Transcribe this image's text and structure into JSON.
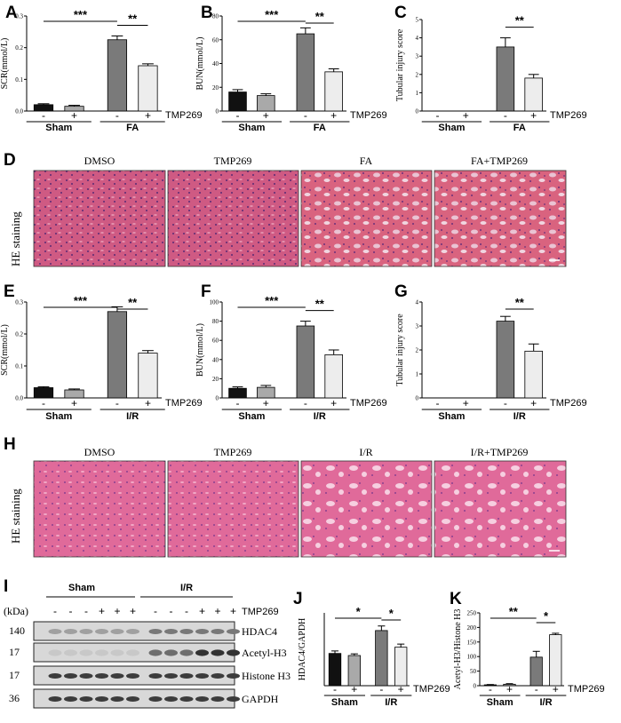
{
  "panel_labels": [
    "A",
    "B",
    "C",
    "D",
    "E",
    "F",
    "G",
    "H",
    "I",
    "J",
    "K"
  ],
  "hist_D": {
    "row_label": "HE staining",
    "captions": [
      "DMSO",
      "TMP269",
      "FA",
      "FA+TMP269"
    ]
  },
  "hist_H": {
    "row_label": "HE staining",
    "captions": [
      "DMSO",
      "TMP269",
      "I/R",
      "I/R+TMP269"
    ]
  },
  "colors": {
    "black": "#111111",
    "lightgray": "#a9a9a9",
    "darkgray": "#7a7a7a",
    "white": "#ededed",
    "he_pink": "#d9637f",
    "he_violet": "#b45894"
  },
  "blot": {
    "kda_label": "(kDa)",
    "group_labels": [
      "Sham",
      "I/R"
    ],
    "treatment_label": "TMP269",
    "signs": [
      "-",
      "-",
      "-",
      "+",
      "+",
      "+",
      "-",
      "-",
      "-",
      "+",
      "+",
      "+"
    ],
    "rows": [
      {
        "kda": "140",
        "protein": "HDAC4"
      },
      {
        "kda": "17",
        "protein": "Acetyl-H3"
      },
      {
        "kda": "17",
        "protein": "Histone H3"
      },
      {
        "kda": "36",
        "protein": "GAPDH"
      }
    ]
  },
  "chart_data": [
    {
      "panel": "A",
      "type": "bar",
      "ylabel": "SCR(mmol/L)",
      "yticks": [
        "0.0",
        "0.1",
        "0.2",
        "0.3"
      ],
      "ylim": [
        0,
        0.3
      ],
      "categories": [
        "-",
        "+",
        "-",
        "+"
      ],
      "groups": [
        "Sham",
        "FA"
      ],
      "treatment_label": "TMP269",
      "values": [
        0.02,
        0.015,
        0.225,
        0.143
      ],
      "errors": [
        0.003,
        0.003,
        0.012,
        0.006
      ],
      "significance": [
        {
          "from": 0,
          "to": 2,
          "label": "***"
        },
        {
          "from": 2,
          "to": 3,
          "label": "**"
        }
      ]
    },
    {
      "panel": "B",
      "type": "bar",
      "ylabel": "BUN(mmol/L)",
      "yticks": [
        "0",
        "20",
        "40",
        "60",
        "80"
      ],
      "ylim": [
        0,
        80
      ],
      "categories": [
        "-",
        "+",
        "-",
        "+"
      ],
      "groups": [
        "Sham",
        "FA"
      ],
      "treatment_label": "TMP269",
      "values": [
        16,
        13,
        65,
        33
      ],
      "errors": [
        2,
        1.5,
        5,
        2.5
      ],
      "significance": [
        {
          "from": 0,
          "to": 2,
          "label": "***"
        },
        {
          "from": 2,
          "to": 3,
          "label": "**"
        }
      ]
    },
    {
      "panel": "C",
      "type": "bar",
      "ylabel": "Tubular injury score",
      "yticks": [
        "0",
        "1",
        "2",
        "3",
        "4",
        "5"
      ],
      "ylim": [
        0,
        5
      ],
      "categories": [
        "-",
        "+",
        "-",
        "+"
      ],
      "groups": [
        "Sham",
        "FA"
      ],
      "treatment_label": "TMP269",
      "values": [
        0,
        0,
        3.5,
        1.8
      ],
      "errors": [
        0,
        0,
        0.5,
        0.2
      ],
      "significance": [
        {
          "from": 2,
          "to": 3,
          "label": "**"
        }
      ]
    },
    {
      "panel": "E",
      "type": "bar",
      "ylabel": "SCR(mmol/L)",
      "yticks": [
        "0.0",
        "0.1",
        "0.2",
        "0.3"
      ],
      "ylim": [
        0,
        0.3
      ],
      "categories": [
        "-",
        "+",
        "-",
        "+"
      ],
      "groups": [
        "Sham",
        "I/R"
      ],
      "treatment_label": "TMP269",
      "values": [
        0.032,
        0.025,
        0.27,
        0.14
      ],
      "errors": [
        0.003,
        0.003,
        0.015,
        0.008
      ],
      "significance": [
        {
          "from": 0,
          "to": 2,
          "label": "***"
        },
        {
          "from": 2,
          "to": 3,
          "label": "**"
        }
      ]
    },
    {
      "panel": "F",
      "type": "bar",
      "ylabel": "BUN(mmol/L)",
      "yticks": [
        "0",
        "20",
        "40",
        "60",
        "80",
        "100"
      ],
      "ylim": [
        0,
        100
      ],
      "categories": [
        "-",
        "+",
        "-",
        "+"
      ],
      "groups": [
        "Sham",
        "I/R"
      ],
      "treatment_label": "TMP269",
      "values": [
        10,
        11,
        75,
        45
      ],
      "errors": [
        1.5,
        2,
        5,
        5
      ],
      "significance": [
        {
          "from": 0,
          "to": 2,
          "label": "***"
        },
        {
          "from": 2,
          "to": 3,
          "label": "**"
        }
      ]
    },
    {
      "panel": "G",
      "type": "bar",
      "ylabel": "Tubular injury score",
      "yticks": [
        "0",
        "1",
        "2",
        "3",
        "4"
      ],
      "ylim": [
        0,
        4
      ],
      "categories": [
        "-",
        "+",
        "-",
        "+"
      ],
      "groups": [
        "Sham",
        "I/R"
      ],
      "treatment_label": "TMP269",
      "values": [
        0,
        0,
        3.2,
        1.95
      ],
      "errors": [
        0,
        0,
        0.2,
        0.3
      ],
      "significance": [
        {
          "from": 2,
          "to": 3,
          "label": "**"
        }
      ]
    },
    {
      "panel": "J",
      "type": "bar",
      "ylabel": "HDAC4/GAPDH",
      "yticks": [],
      "ylim": [
        0,
        3.5
      ],
      "categories": [
        "-",
        "+",
        "-",
        "+"
      ],
      "groups": [
        "Sham",
        "I/R"
      ],
      "treatment_label": "TMP269",
      "values": [
        1.55,
        1.45,
        2.65,
        1.85
      ],
      "errors": [
        0.12,
        0.08,
        0.22,
        0.15
      ],
      "significance": [
        {
          "from": 0,
          "to": 2,
          "label": "*"
        },
        {
          "from": 2,
          "to": 3,
          "label": "*"
        }
      ]
    },
    {
      "panel": "K",
      "type": "bar",
      "ylabel": "Acetyl-H3/Histone H3",
      "yticks": [
        "0",
        "50",
        "100",
        "150",
        "200",
        "250"
      ],
      "ylim": [
        0,
        250
      ],
      "categories": [
        "-",
        "+",
        "-",
        "+"
      ],
      "groups": [
        "Sham",
        "I/R"
      ],
      "treatment_label": "TMP269",
      "values": [
        3,
        5,
        98,
        175
      ],
      "errors": [
        1,
        2,
        20,
        5
      ],
      "significance": [
        {
          "from": 0,
          "to": 2,
          "label": "**"
        },
        {
          "from": 2,
          "to": 3,
          "label": "*"
        }
      ]
    }
  ]
}
